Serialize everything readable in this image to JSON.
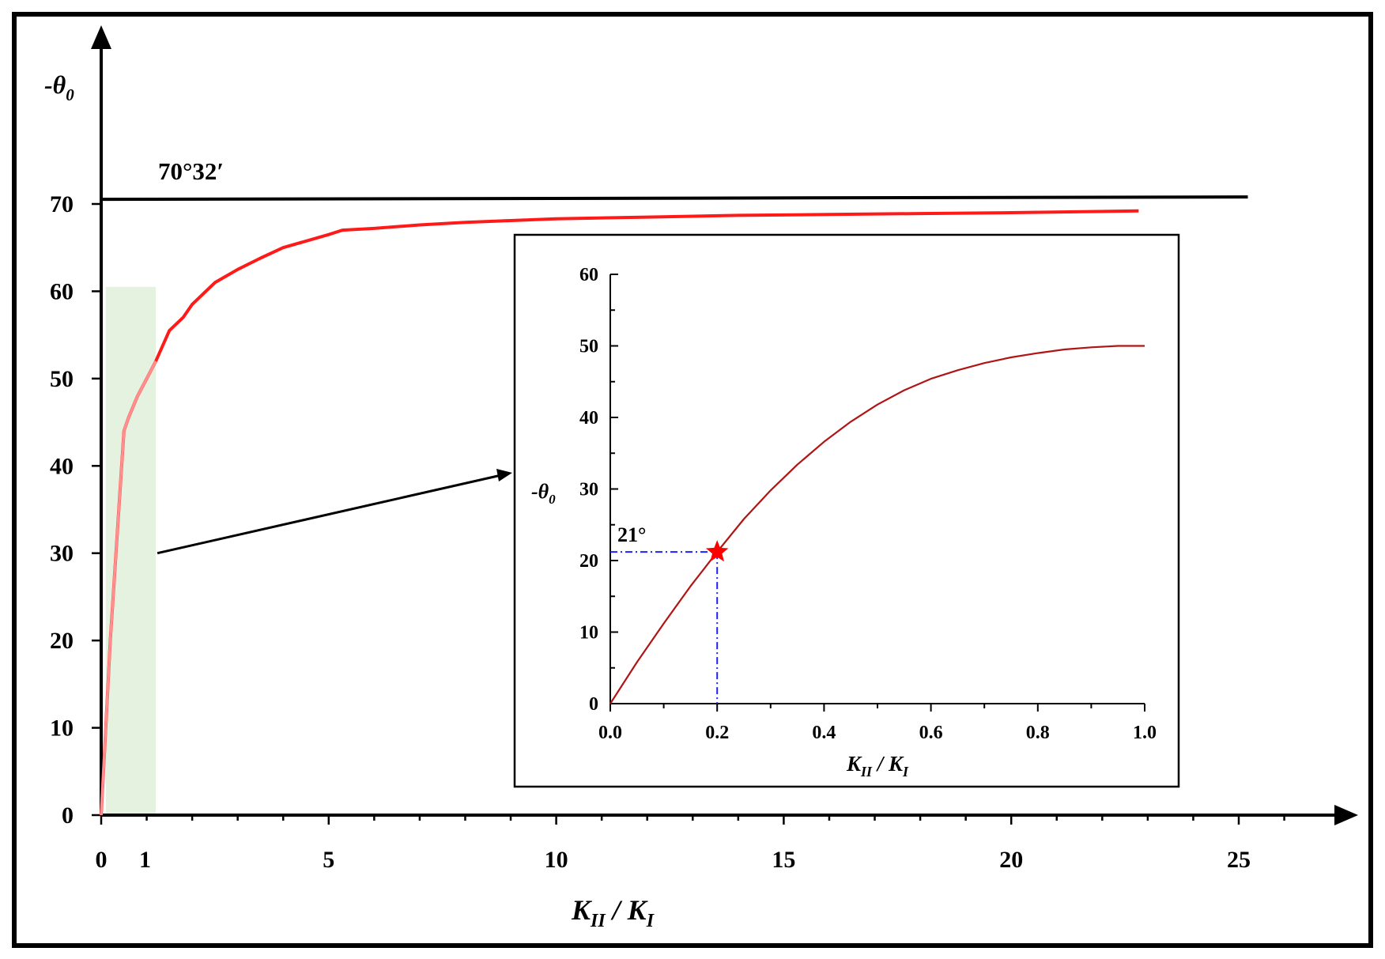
{
  "colors": {
    "frame": "#000000",
    "main_curve": "#ff1a1a",
    "main_curve_highlight": "#ff8f8f",
    "highlight_band": "#e6f2e0",
    "inset_curve": "#b01515",
    "marker": "#ff0000",
    "guide": "#2020ff"
  },
  "chart_data": [
    {
      "type": "line",
      "role": "main",
      "ylabel_prefix": "-θ",
      "ylabel_sub": "0",
      "xlabel_main": "K",
      "xlabel_sub1": "II",
      "xlabel_sep": " / K",
      "xlabel_sub2": "I",
      "xlim": [
        0,
        25
      ],
      "ylim": [
        0,
        70
      ],
      "xticks": [
        0,
        5,
        10,
        15,
        20,
        25
      ],
      "xtick_labels": [
        "0",
        "5",
        "10",
        "15",
        "20",
        "25"
      ],
      "extra_xtick": {
        "value": 1,
        "label": "1"
      },
      "yticks": [
        0,
        10,
        20,
        30,
        40,
        50,
        60,
        70
      ],
      "ytick_labels": [
        "0",
        "10",
        "20",
        "30",
        "40",
        "50",
        "60",
        "70"
      ],
      "asymptote": {
        "y": 70.53,
        "label": "70°32′",
        "x_end": 25.2
      },
      "highlight_band": {
        "x0": 0.1,
        "x1": 1.2,
        "y0": 0,
        "y1": 60.5
      },
      "series": [
        {
          "x": [
            0,
            0.1,
            0.2,
            0.3,
            0.4,
            0.5,
            0.6,
            0.8,
            1.0,
            1.2,
            1.5,
            1.8,
            2.0,
            2.5,
            3.0,
            3.5,
            4.0,
            5.0,
            5.3,
            6.0,
            7.0,
            8.0,
            9.0,
            10.0,
            12.0,
            14.0,
            16.0,
            18.0,
            20.0,
            22.8
          ],
          "y": [
            0,
            10,
            20,
            28,
            36,
            44,
            45.5,
            48,
            50,
            52,
            55.5,
            57,
            58.5,
            61,
            62.5,
            63.8,
            65,
            66.5,
            67,
            67.2,
            67.6,
            67.9,
            68.1,
            68.3,
            68.5,
            68.7,
            68.8,
            68.9,
            69.0,
            69.2
          ]
        }
      ],
      "annotation_arrow": {
        "from_x": 1.2,
        "from_y": 30
      }
    },
    {
      "type": "line",
      "role": "inset",
      "ylabel_prefix": "-θ",
      "ylabel_sub": "0",
      "xlabel_main": "K",
      "xlabel_sub1": "II",
      "xlabel_sep": " / K",
      "xlabel_sub2": "I",
      "xlim": [
        0,
        1
      ],
      "ylim": [
        0,
        60
      ],
      "xticks": [
        0,
        0.2,
        0.4,
        0.6,
        0.8,
        1.0
      ],
      "xtick_labels": [
        "0.0",
        "0.2",
        "0.4",
        "0.6",
        "0.8",
        "1.0"
      ],
      "yticks": [
        0,
        10,
        20,
        30,
        40,
        50,
        60
      ],
      "ytick_labels": [
        "0",
        "10",
        "20",
        "30",
        "40",
        "50",
        "60"
      ],
      "series": [
        {
          "x": [
            0,
            0.05,
            0.1,
            0.15,
            0.2,
            0.25,
            0.3,
            0.35,
            0.4,
            0.45,
            0.5,
            0.55,
            0.6,
            0.65,
            0.7,
            0.75,
            0.8,
            0.85,
            0.9,
            0.95,
            1.0
          ],
          "y": [
            0,
            5.8,
            11.2,
            16.4,
            21.2,
            25.8,
            29.8,
            33.4,
            36.6,
            39.4,
            41.8,
            43.8,
            45.4,
            46.6,
            47.6,
            48.4,
            49.0,
            49.5,
            49.8,
            50.0,
            50.0
          ]
        }
      ],
      "marker": {
        "x": 0.2,
        "y": 21.2,
        "label": "21°"
      }
    }
  ]
}
